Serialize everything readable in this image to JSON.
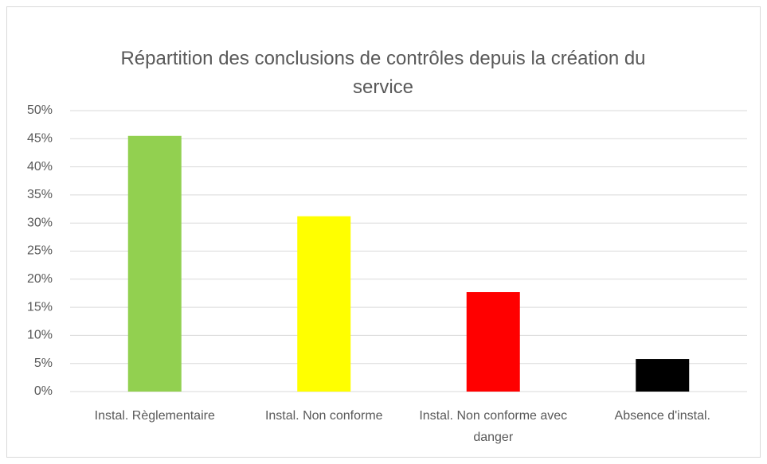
{
  "chart_data": {
    "type": "bar",
    "title": "Répartition des conclusions de contrôles depuis la création du service",
    "categories": [
      "Instal. Règlementaire",
      "Instal. Non conforme",
      "Instal. Non conforme avec danger",
      "Absence d'instal."
    ],
    "values": [
      45.5,
      31.2,
      17.7,
      5.8
    ],
    "colors": [
      "#92d050",
      "#ffff00",
      "#ff0000",
      "#000000"
    ],
    "ylim": [
      0,
      50
    ],
    "yticks": [
      {
        "value": 0,
        "label": "0%"
      },
      {
        "value": 5,
        "label": "5%"
      },
      {
        "value": 10,
        "label": "10%"
      },
      {
        "value": 15,
        "label": "15%"
      },
      {
        "value": 20,
        "label": "20%"
      },
      {
        "value": 25,
        "label": "25%"
      },
      {
        "value": 30,
        "label": "30%"
      },
      {
        "value": 35,
        "label": "35%"
      },
      {
        "value": 40,
        "label": "40%"
      },
      {
        "value": 45,
        "label": "45%"
      },
      {
        "value": 50,
        "label": "50%"
      }
    ],
    "grid": true
  }
}
